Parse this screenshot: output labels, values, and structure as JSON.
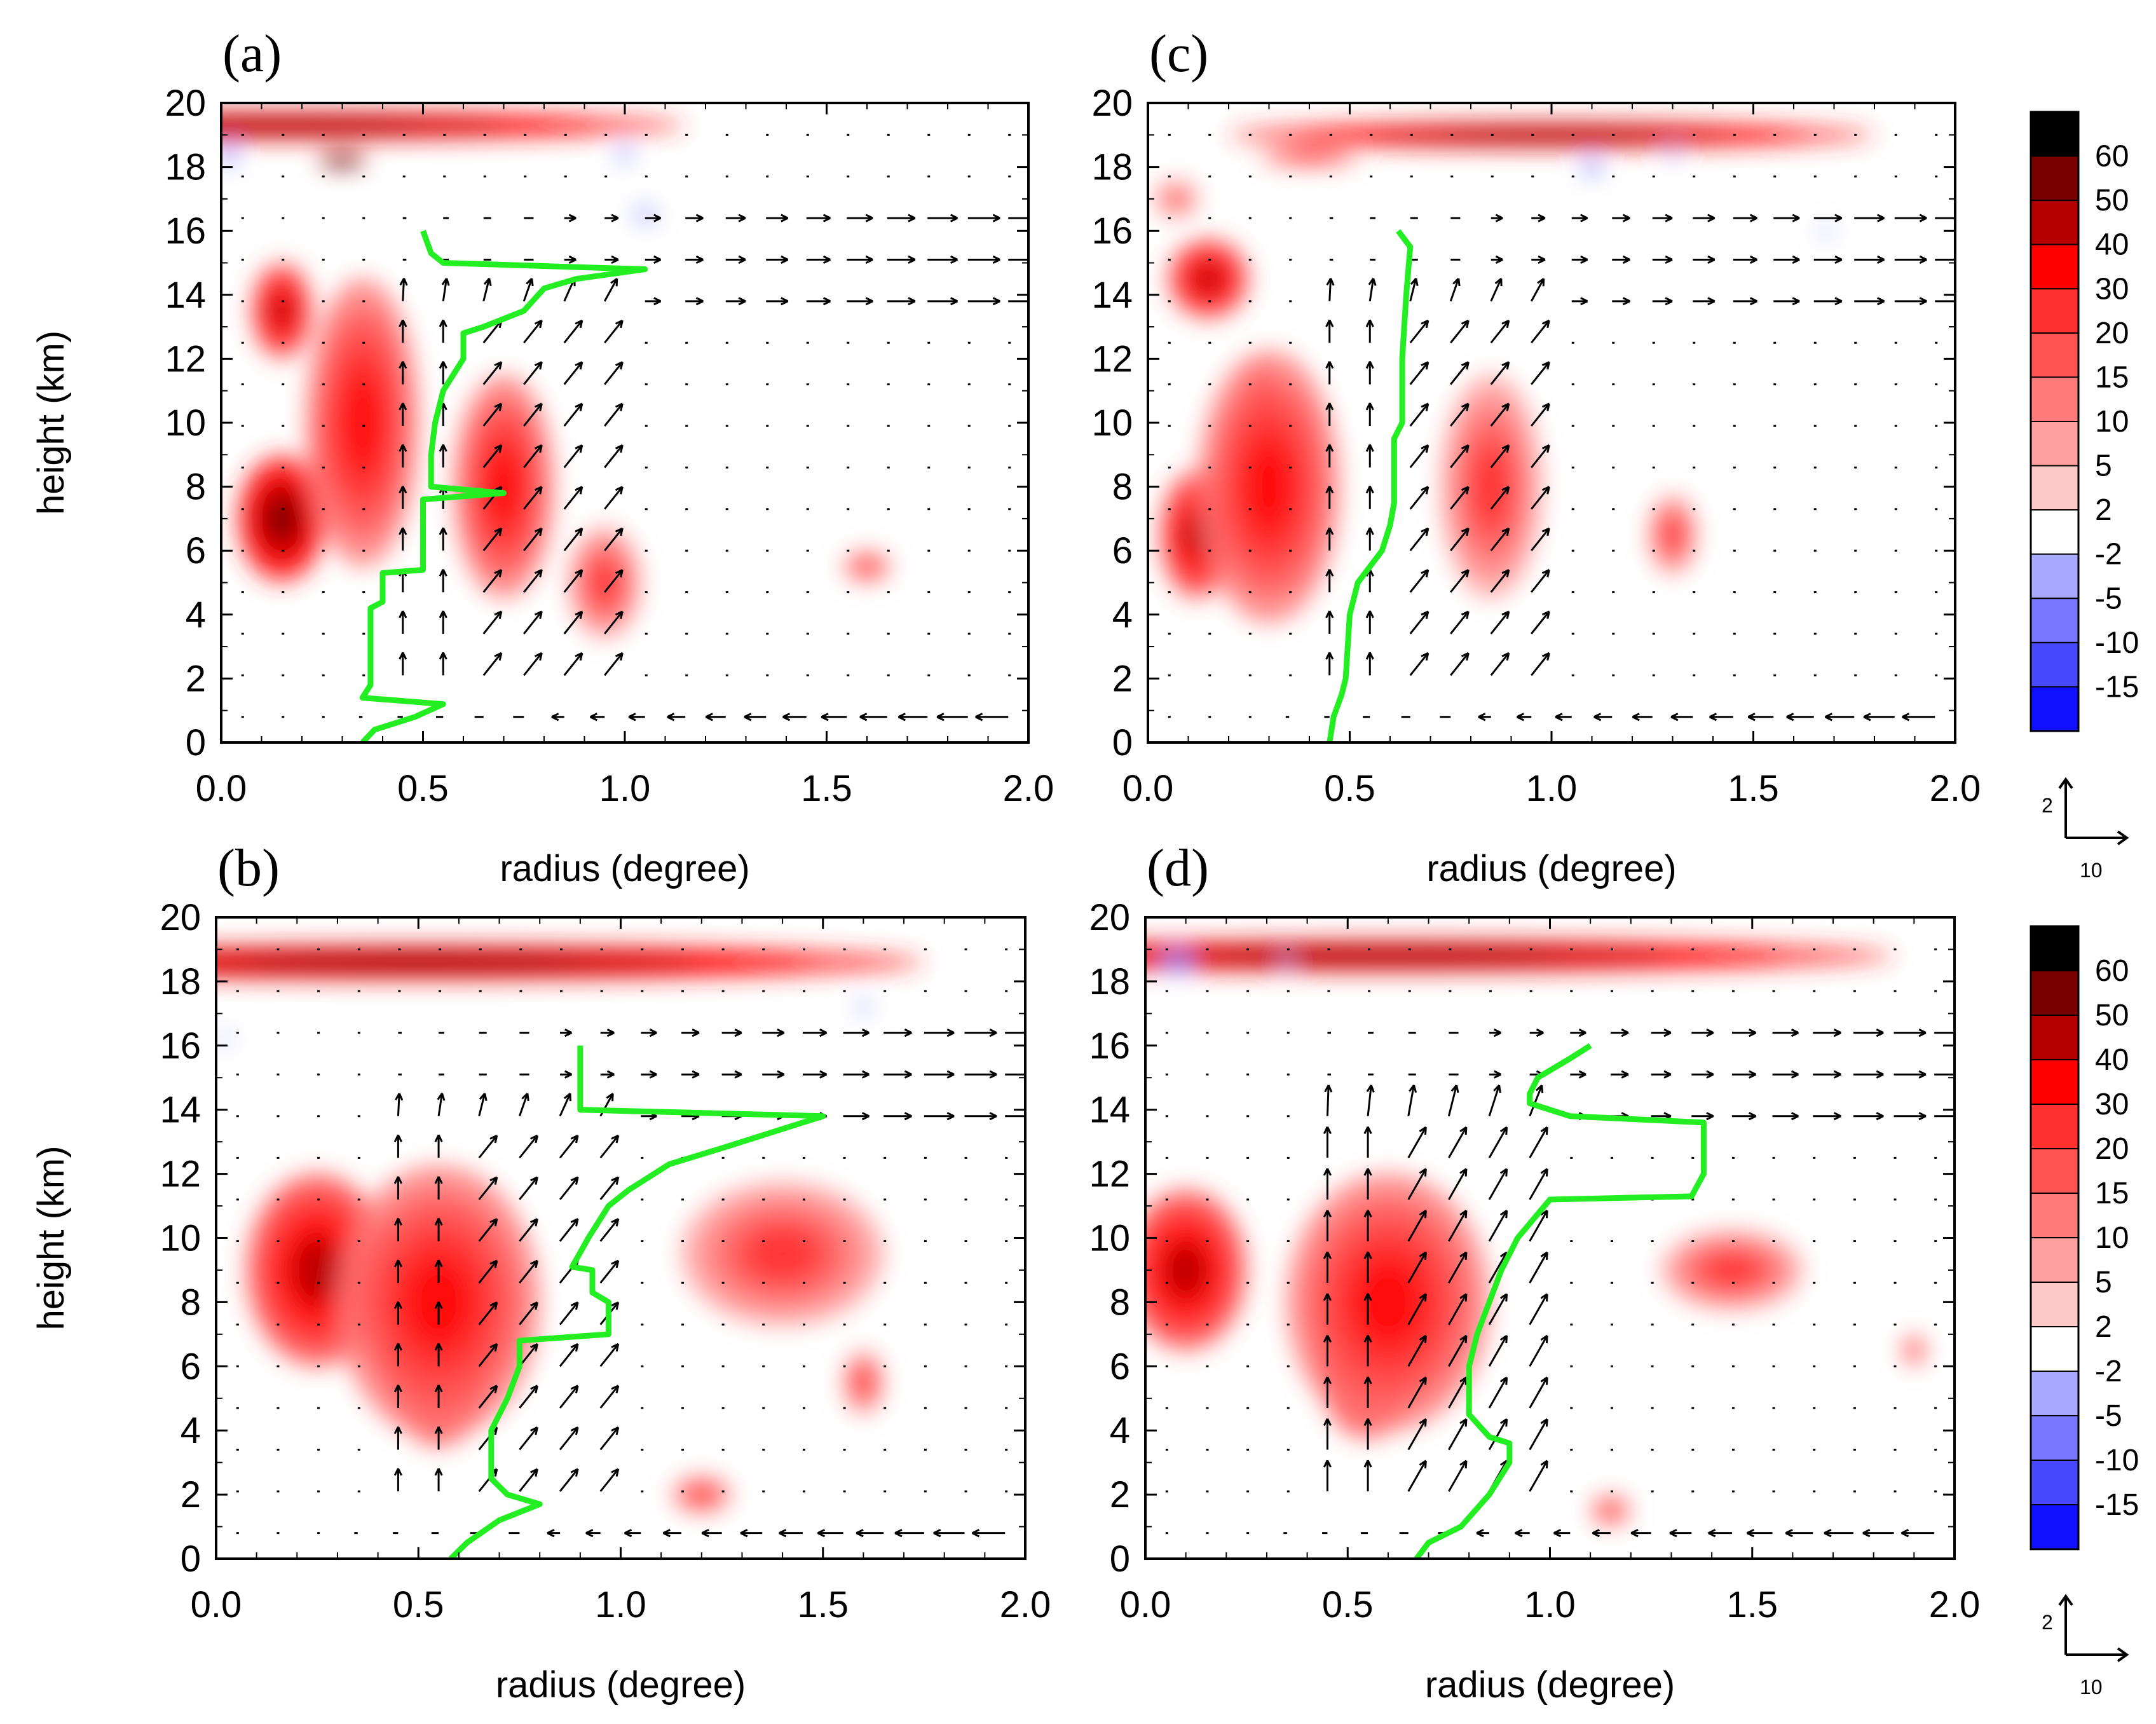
{
  "chart_data": {
    "type": "contour-vector",
    "x_axis": {
      "label": "radius (degree)",
      "ticks": [
        "0.0",
        "0.5",
        "1.0",
        "1.5",
        "2.0"
      ],
      "range": [
        0,
        2
      ]
    },
    "y_axis": {
      "label": "height (km)",
      "ticks": [
        "0",
        "2",
        "4",
        "6",
        "8",
        "10",
        "12",
        "14",
        "16",
        "18",
        "20"
      ],
      "range": [
        0,
        20
      ]
    },
    "colorbar": {
      "labels": [
        "60",
        "50",
        "40",
        "30",
        "20",
        "15",
        "10",
        "5",
        "2",
        "-2",
        "-5",
        "-10",
        "-15"
      ],
      "colors": [
        "#000000",
        "#7a0000",
        "#b40000",
        "#ff0000",
        "#ff3030",
        "#ff5252",
        "#ff7a7a",
        "#ff9f9f",
        "#ffc8c8",
        "#ffffff",
        "#a8a8ff",
        "#7878ff",
        "#4848ff",
        "#1010ff",
        "#0000ff"
      ]
    },
    "reference_vector": {
      "vertical": "2",
      "horizontal": "10"
    },
    "panels": [
      {
        "id": "a",
        "label": "(a)",
        "green_line": [
          [
            0.35,
            0
          ],
          [
            0.38,
            0.4
          ],
          [
            0.48,
            0.8
          ],
          [
            0.55,
            1.2
          ],
          [
            0.35,
            1.4
          ],
          [
            0.37,
            1.8
          ],
          [
            0.37,
            4.2
          ],
          [
            0.4,
            4.4
          ],
          [
            0.4,
            5.3
          ],
          [
            0.5,
            5.4
          ],
          [
            0.5,
            7.6
          ],
          [
            0.7,
            7.8
          ],
          [
            0.52,
            8
          ],
          [
            0.52,
            9
          ],
          [
            0.53,
            10
          ],
          [
            0.55,
            11
          ],
          [
            0.6,
            12
          ],
          [
            0.6,
            12.8
          ],
          [
            0.65,
            13
          ],
          [
            0.75,
            13.5
          ],
          [
            0.8,
            14.2
          ],
          [
            0.88,
            14.5
          ],
          [
            1.05,
            14.8
          ],
          [
            0.55,
            15
          ],
          [
            0.52,
            15.3
          ],
          [
            0.5,
            16
          ]
        ]
      },
      {
        "id": "b",
        "label": "(b)",
        "green_line": [
          [
            0.58,
            0
          ],
          [
            0.62,
            0.5
          ],
          [
            0.7,
            1.2
          ],
          [
            0.8,
            1.7
          ],
          [
            0.72,
            2
          ],
          [
            0.68,
            2.5
          ],
          [
            0.68,
            4
          ],
          [
            0.72,
            5
          ],
          [
            0.75,
            6
          ],
          [
            0.75,
            6.8
          ],
          [
            0.97,
            7
          ],
          [
            0.97,
            8
          ],
          [
            0.93,
            8.3
          ],
          [
            0.93,
            9
          ],
          [
            0.88,
            9.1
          ],
          [
            0.92,
            10
          ],
          [
            0.97,
            11
          ],
          [
            1.02,
            11.5
          ],
          [
            1.12,
            12.3
          ],
          [
            1.25,
            12.8
          ],
          [
            1.5,
            13.8
          ],
          [
            0.9,
            14
          ],
          [
            0.9,
            16
          ]
        ]
      },
      {
        "id": "c",
        "label": "(c)",
        "green_line": [
          [
            0.45,
            0
          ],
          [
            0.46,
            0.8
          ],
          [
            0.48,
            1.5
          ],
          [
            0.49,
            2
          ],
          [
            0.5,
            4
          ],
          [
            0.52,
            5
          ],
          [
            0.58,
            6
          ],
          [
            0.6,
            6.8
          ],
          [
            0.61,
            7.5
          ],
          [
            0.61,
            9.5
          ],
          [
            0.63,
            10
          ],
          [
            0.63,
            12
          ],
          [
            0.64,
            14
          ],
          [
            0.65,
            15.5
          ],
          [
            0.62,
            16
          ]
        ]
      },
      {
        "id": "d",
        "label": "(d)",
        "green_line": [
          [
            0.67,
            0
          ],
          [
            0.7,
            0.5
          ],
          [
            0.78,
            1
          ],
          [
            0.85,
            2
          ],
          [
            0.9,
            3
          ],
          [
            0.9,
            3.6
          ],
          [
            0.85,
            3.8
          ],
          [
            0.8,
            4.5
          ],
          [
            0.8,
            6
          ],
          [
            0.82,
            7
          ],
          [
            0.85,
            8
          ],
          [
            0.88,
            9
          ],
          [
            0.92,
            10
          ],
          [
            1,
            11.2
          ],
          [
            1.35,
            11.3
          ],
          [
            1.38,
            12
          ],
          [
            1.38,
            13.6
          ],
          [
            1.05,
            13.8
          ],
          [
            0.95,
            14.2
          ],
          [
            0.95,
            14.5
          ],
          [
            0.97,
            15
          ],
          [
            1.05,
            15.6
          ],
          [
            1.1,
            16
          ]
        ]
      }
    ]
  }
}
